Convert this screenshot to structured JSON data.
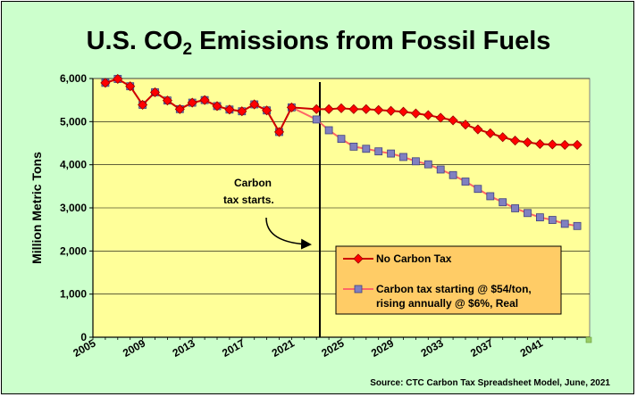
{
  "chart_data": {
    "type": "line",
    "title_main": "U.S. CO",
    "title_sub": "2",
    "title_rest": " Emissions from Fossil Fuels",
    "ylabel": "Million Metric Tons",
    "xlabel": "",
    "ylim": [
      0,
      6000
    ],
    "xlim": [
      2005,
      2045
    ],
    "yticks": [
      "0",
      "1,000",
      "2,000",
      "3,000",
      "4,000",
      "5,000",
      "6,000"
    ],
    "xticks": [
      "2005",
      "2009",
      "2013",
      "2017",
      "2021",
      "2025",
      "2029",
      "2033",
      "2037",
      "2041"
    ],
    "grid": true,
    "legend_position": "bottom-right",
    "annotation": [
      "Carbon",
      "tax starts."
    ],
    "source": "Source:  CTC Carbon Tax Spreadsheet Model, June, 2021",
    "series": [
      {
        "name": "No Carbon Tax",
        "color": "#cc0000",
        "marker": "diamond",
        "x": [
          2006,
          2007,
          2008,
          2009,
          2010,
          2011,
          2012,
          2013,
          2014,
          2015,
          2016,
          2017,
          2018,
          2019,
          2020,
          2021,
          2023,
          2024,
          2025,
          2026,
          2027,
          2028,
          2029,
          2030,
          2031,
          2032,
          2033,
          2034,
          2035,
          2036,
          2037,
          2038,
          2039,
          2040,
          2041,
          2042,
          2043,
          2044
        ],
        "values": [
          5900,
          5990,
          5820,
          5390,
          5680,
          5490,
          5290,
          5440,
          5500,
          5360,
          5280,
          5240,
          5400,
          5260,
          4760,
          5330,
          5290,
          5290,
          5310,
          5290,
          5290,
          5270,
          5250,
          5230,
          5190,
          5150,
          5090,
          5030,
          4930,
          4820,
          4730,
          4640,
          4560,
          4520,
          4480,
          4470,
          4460,
          4460
        ]
      },
      {
        "name": "Carbon tax starting @ $54/ton, rising annually @ $6%, Real",
        "color": "#ff6666",
        "marker": "square",
        "x": [
          2006,
          2007,
          2008,
          2009,
          2010,
          2011,
          2012,
          2013,
          2014,
          2015,
          2016,
          2017,
          2018,
          2019,
          2020,
          2021,
          2023,
          2024,
          2025,
          2026,
          2027,
          2028,
          2029,
          2030,
          2031,
          2032,
          2033,
          2034,
          2035,
          2036,
          2037,
          2038,
          2039,
          2040,
          2041,
          2042,
          2043,
          2044
        ],
        "values": [
          5900,
          5990,
          5820,
          5390,
          5680,
          5490,
          5290,
          5440,
          5500,
          5360,
          5280,
          5240,
          5400,
          5260,
          4760,
          5330,
          5050,
          4800,
          4600,
          4420,
          4370,
          4310,
          4260,
          4180,
          4080,
          4010,
          3890,
          3760,
          3610,
          3440,
          3270,
          3130,
          2990,
          2880,
          2780,
          2720,
          2630,
          2580
        ]
      }
    ]
  }
}
